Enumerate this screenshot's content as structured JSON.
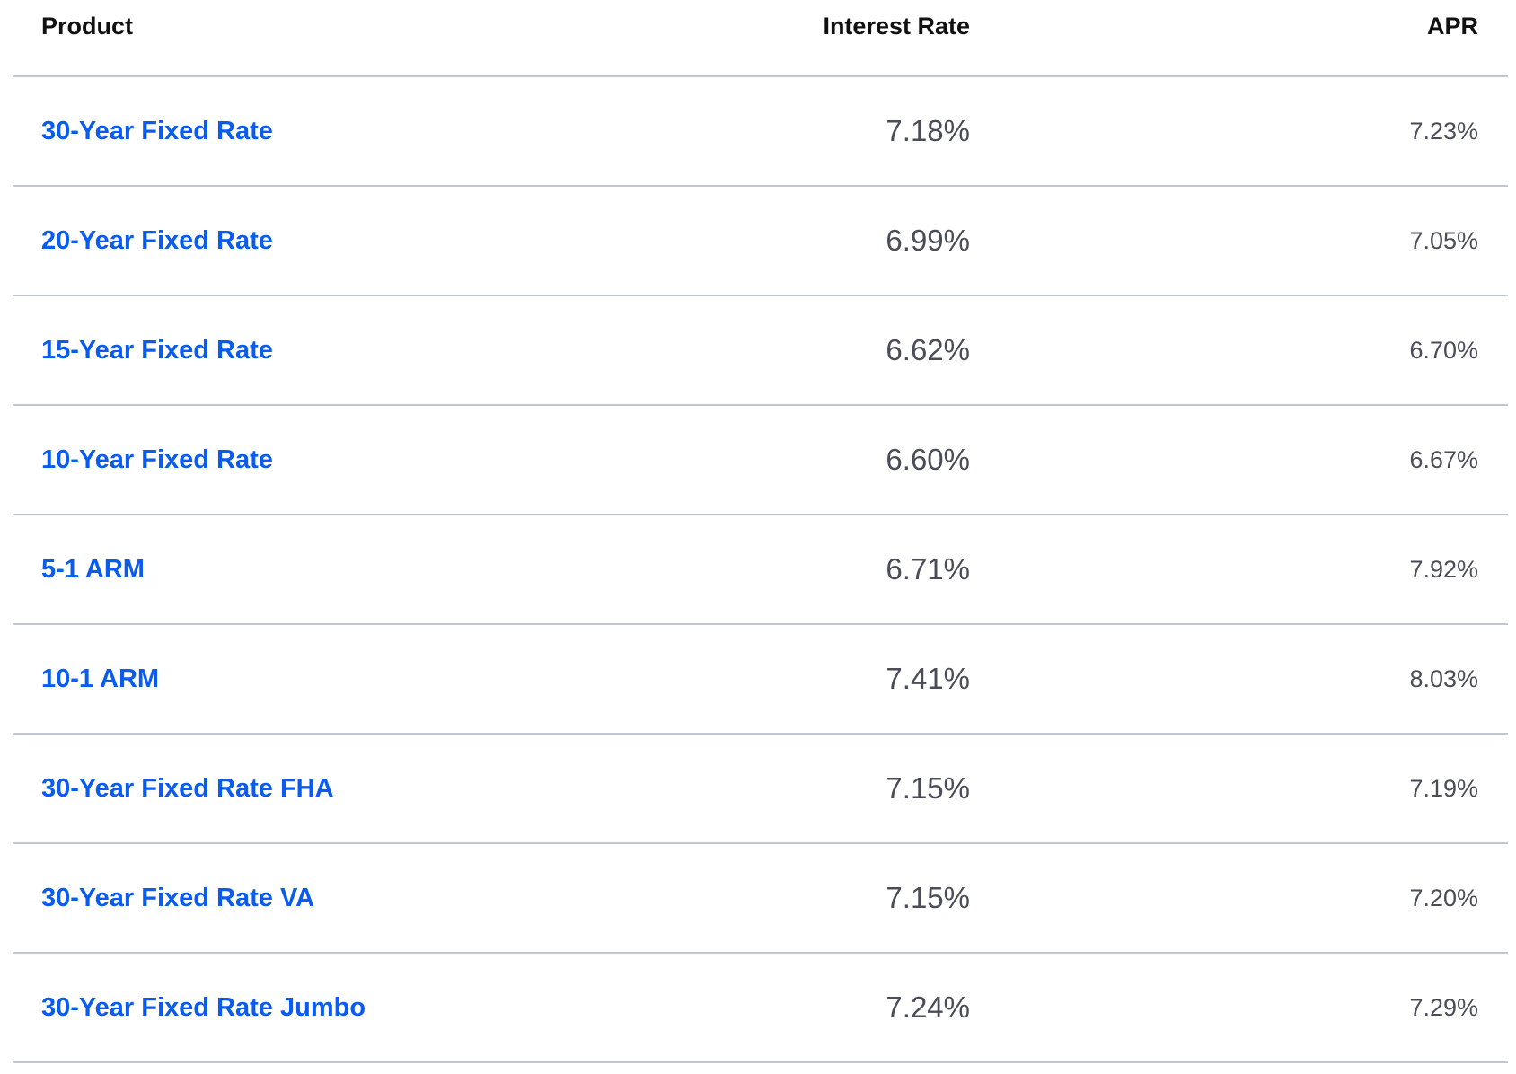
{
  "table": {
    "headers": {
      "product": "Product",
      "interest_rate": "Interest Rate",
      "apr": "APR"
    },
    "rows": [
      {
        "product": "30-Year Fixed Rate",
        "interest_rate": "7.18%",
        "apr": "7.23%"
      },
      {
        "product": "20-Year Fixed Rate",
        "interest_rate": "6.99%",
        "apr": "7.05%"
      },
      {
        "product": "15-Year Fixed Rate",
        "interest_rate": "6.62%",
        "apr": "6.70%"
      },
      {
        "product": "10-Year Fixed Rate",
        "interest_rate": "6.60%",
        "apr": "6.67%"
      },
      {
        "product": "5-1 ARM",
        "interest_rate": "6.71%",
        "apr": "7.92%"
      },
      {
        "product": "10-1 ARM",
        "interest_rate": "7.41%",
        "apr": "8.03%"
      },
      {
        "product": "30-Year Fixed Rate FHA",
        "interest_rate": "7.15%",
        "apr": "7.19%"
      },
      {
        "product": "30-Year Fixed Rate VA",
        "interest_rate": "7.15%",
        "apr": "7.20%"
      },
      {
        "product": "30-Year Fixed Rate Jumbo",
        "interest_rate": "7.24%",
        "apr": "7.29%"
      }
    ]
  },
  "colors": {
    "link": "#0a5cf0",
    "value_text": "#4a4d57",
    "header_text": "#111111",
    "divider": "#c3c7d1"
  }
}
